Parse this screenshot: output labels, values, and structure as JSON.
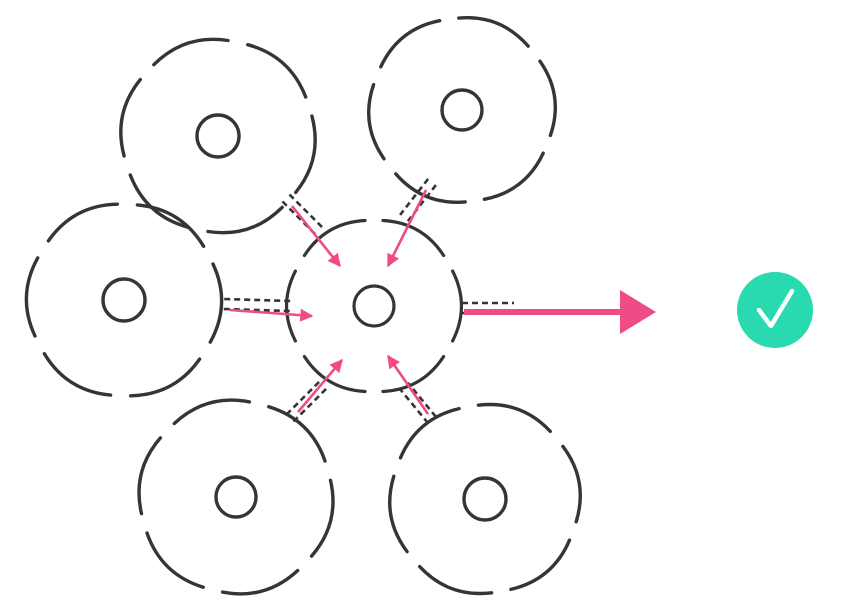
{
  "diagram": {
    "description_visible_text": "",
    "colors": {
      "membrane": "#333538",
      "arrow": "#ee4c86",
      "check_badge": "#29d9b0",
      "check_mark": "#ffffff"
    },
    "cells": [
      {
        "id": "center",
        "role": "receiving-cell"
      },
      {
        "id": "upper-left",
        "role": "neighbor-cell"
      },
      {
        "id": "upper-right",
        "role": "neighbor-cell"
      },
      {
        "id": "left",
        "role": "neighbor-cell"
      },
      {
        "id": "lower-left",
        "role": "neighbor-cell"
      },
      {
        "id": "lower-right",
        "role": "neighbor-cell"
      }
    ],
    "output_arrow": {
      "direction": "right"
    },
    "status_icon": "check-icon"
  }
}
